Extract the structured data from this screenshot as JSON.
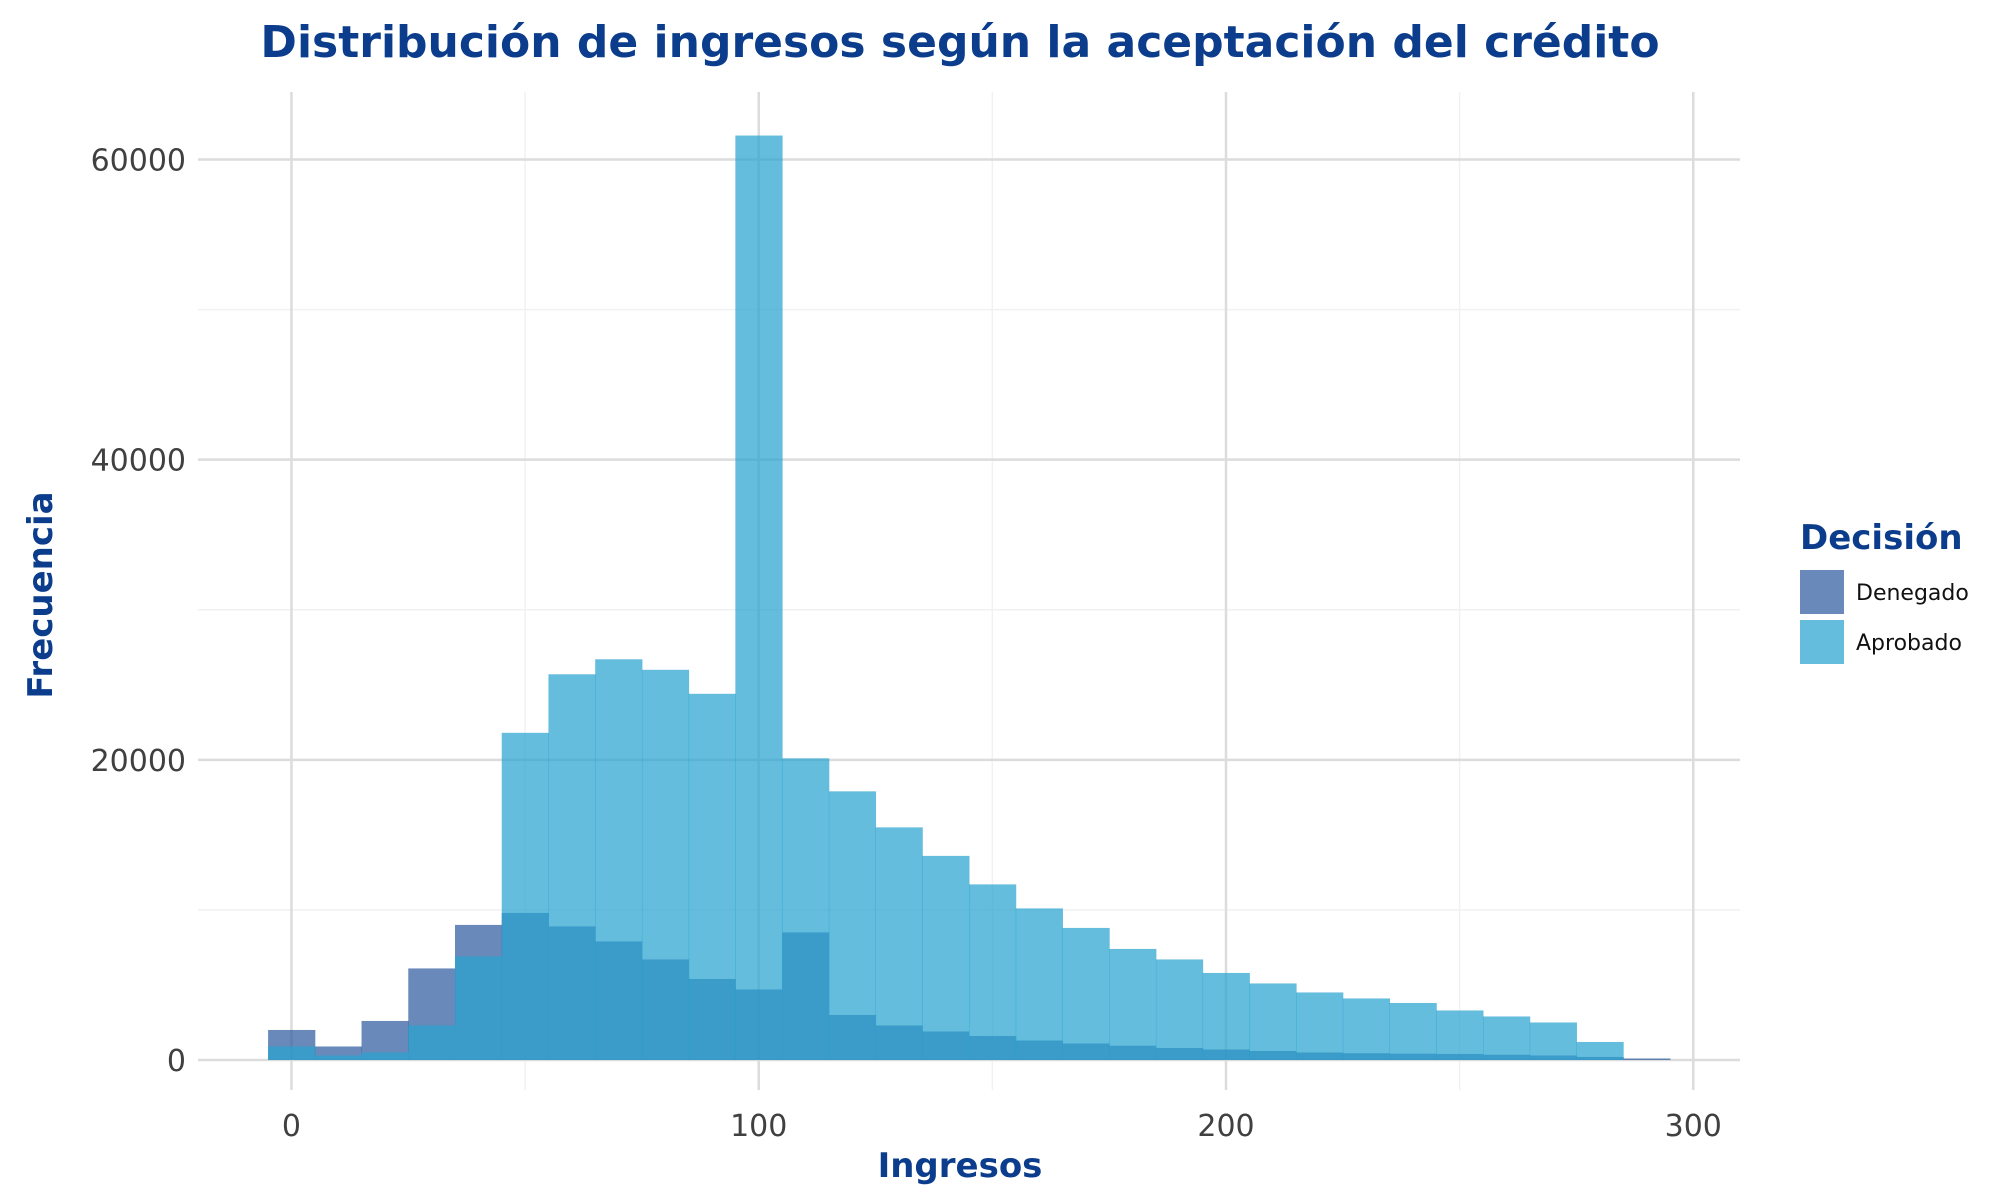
{
  "chart_data": {
    "type": "bar",
    "title": "Distribución de ingresos según la aceptación del crédito",
    "xlabel": "Ingresos",
    "ylabel": "Frecuencia",
    "xlim": [
      -20,
      310
    ],
    "ylim": [
      -2000,
      64500
    ],
    "x_ticks": [
      0,
      100,
      200,
      300
    ],
    "x_tick_labels": [
      "0",
      "100",
      "200",
      "300"
    ],
    "y_ticks": [
      0,
      20000,
      40000,
      60000
    ],
    "y_tick_labels": [
      "0",
      "20000",
      "40000",
      "60000"
    ],
    "grid": true,
    "legend": {
      "title": "Decisión",
      "position": "right"
    },
    "bin_edges": [
      -5,
      5,
      15,
      25,
      35,
      45,
      55,
      65,
      75,
      85,
      95,
      105,
      115,
      125,
      135,
      145,
      155,
      165,
      175,
      185,
      195,
      205,
      215,
      225,
      235,
      245,
      255,
      265,
      275,
      285,
      295
    ],
    "series": [
      {
        "name": "Denegado",
        "color": "#2e5b9e",
        "opacity": 0.72,
        "values": [
          2000,
          900,
          2600,
          6100,
          9000,
          9800,
          8900,
          7900,
          6700,
          5400,
          4700,
          8500,
          3000,
          2300,
          1900,
          1600,
          1300,
          1100,
          950,
          800,
          700,
          600,
          500,
          450,
          420,
          400,
          350,
          300,
          200,
          100
        ]
      },
      {
        "name": "Aprobado",
        "color": "#29a3d0",
        "opacity": 0.72,
        "values": [
          900,
          300,
          500,
          2300,
          6900,
          21800,
          25700,
          26700,
          26000,
          24400,
          61600,
          20100,
          17900,
          15500,
          13600,
          11700,
          10100,
          8800,
          7400,
          6700,
          5800,
          5100,
          4500,
          4100,
          3800,
          3300,
          2900,
          2500,
          1200,
          0
        ]
      }
    ]
  }
}
